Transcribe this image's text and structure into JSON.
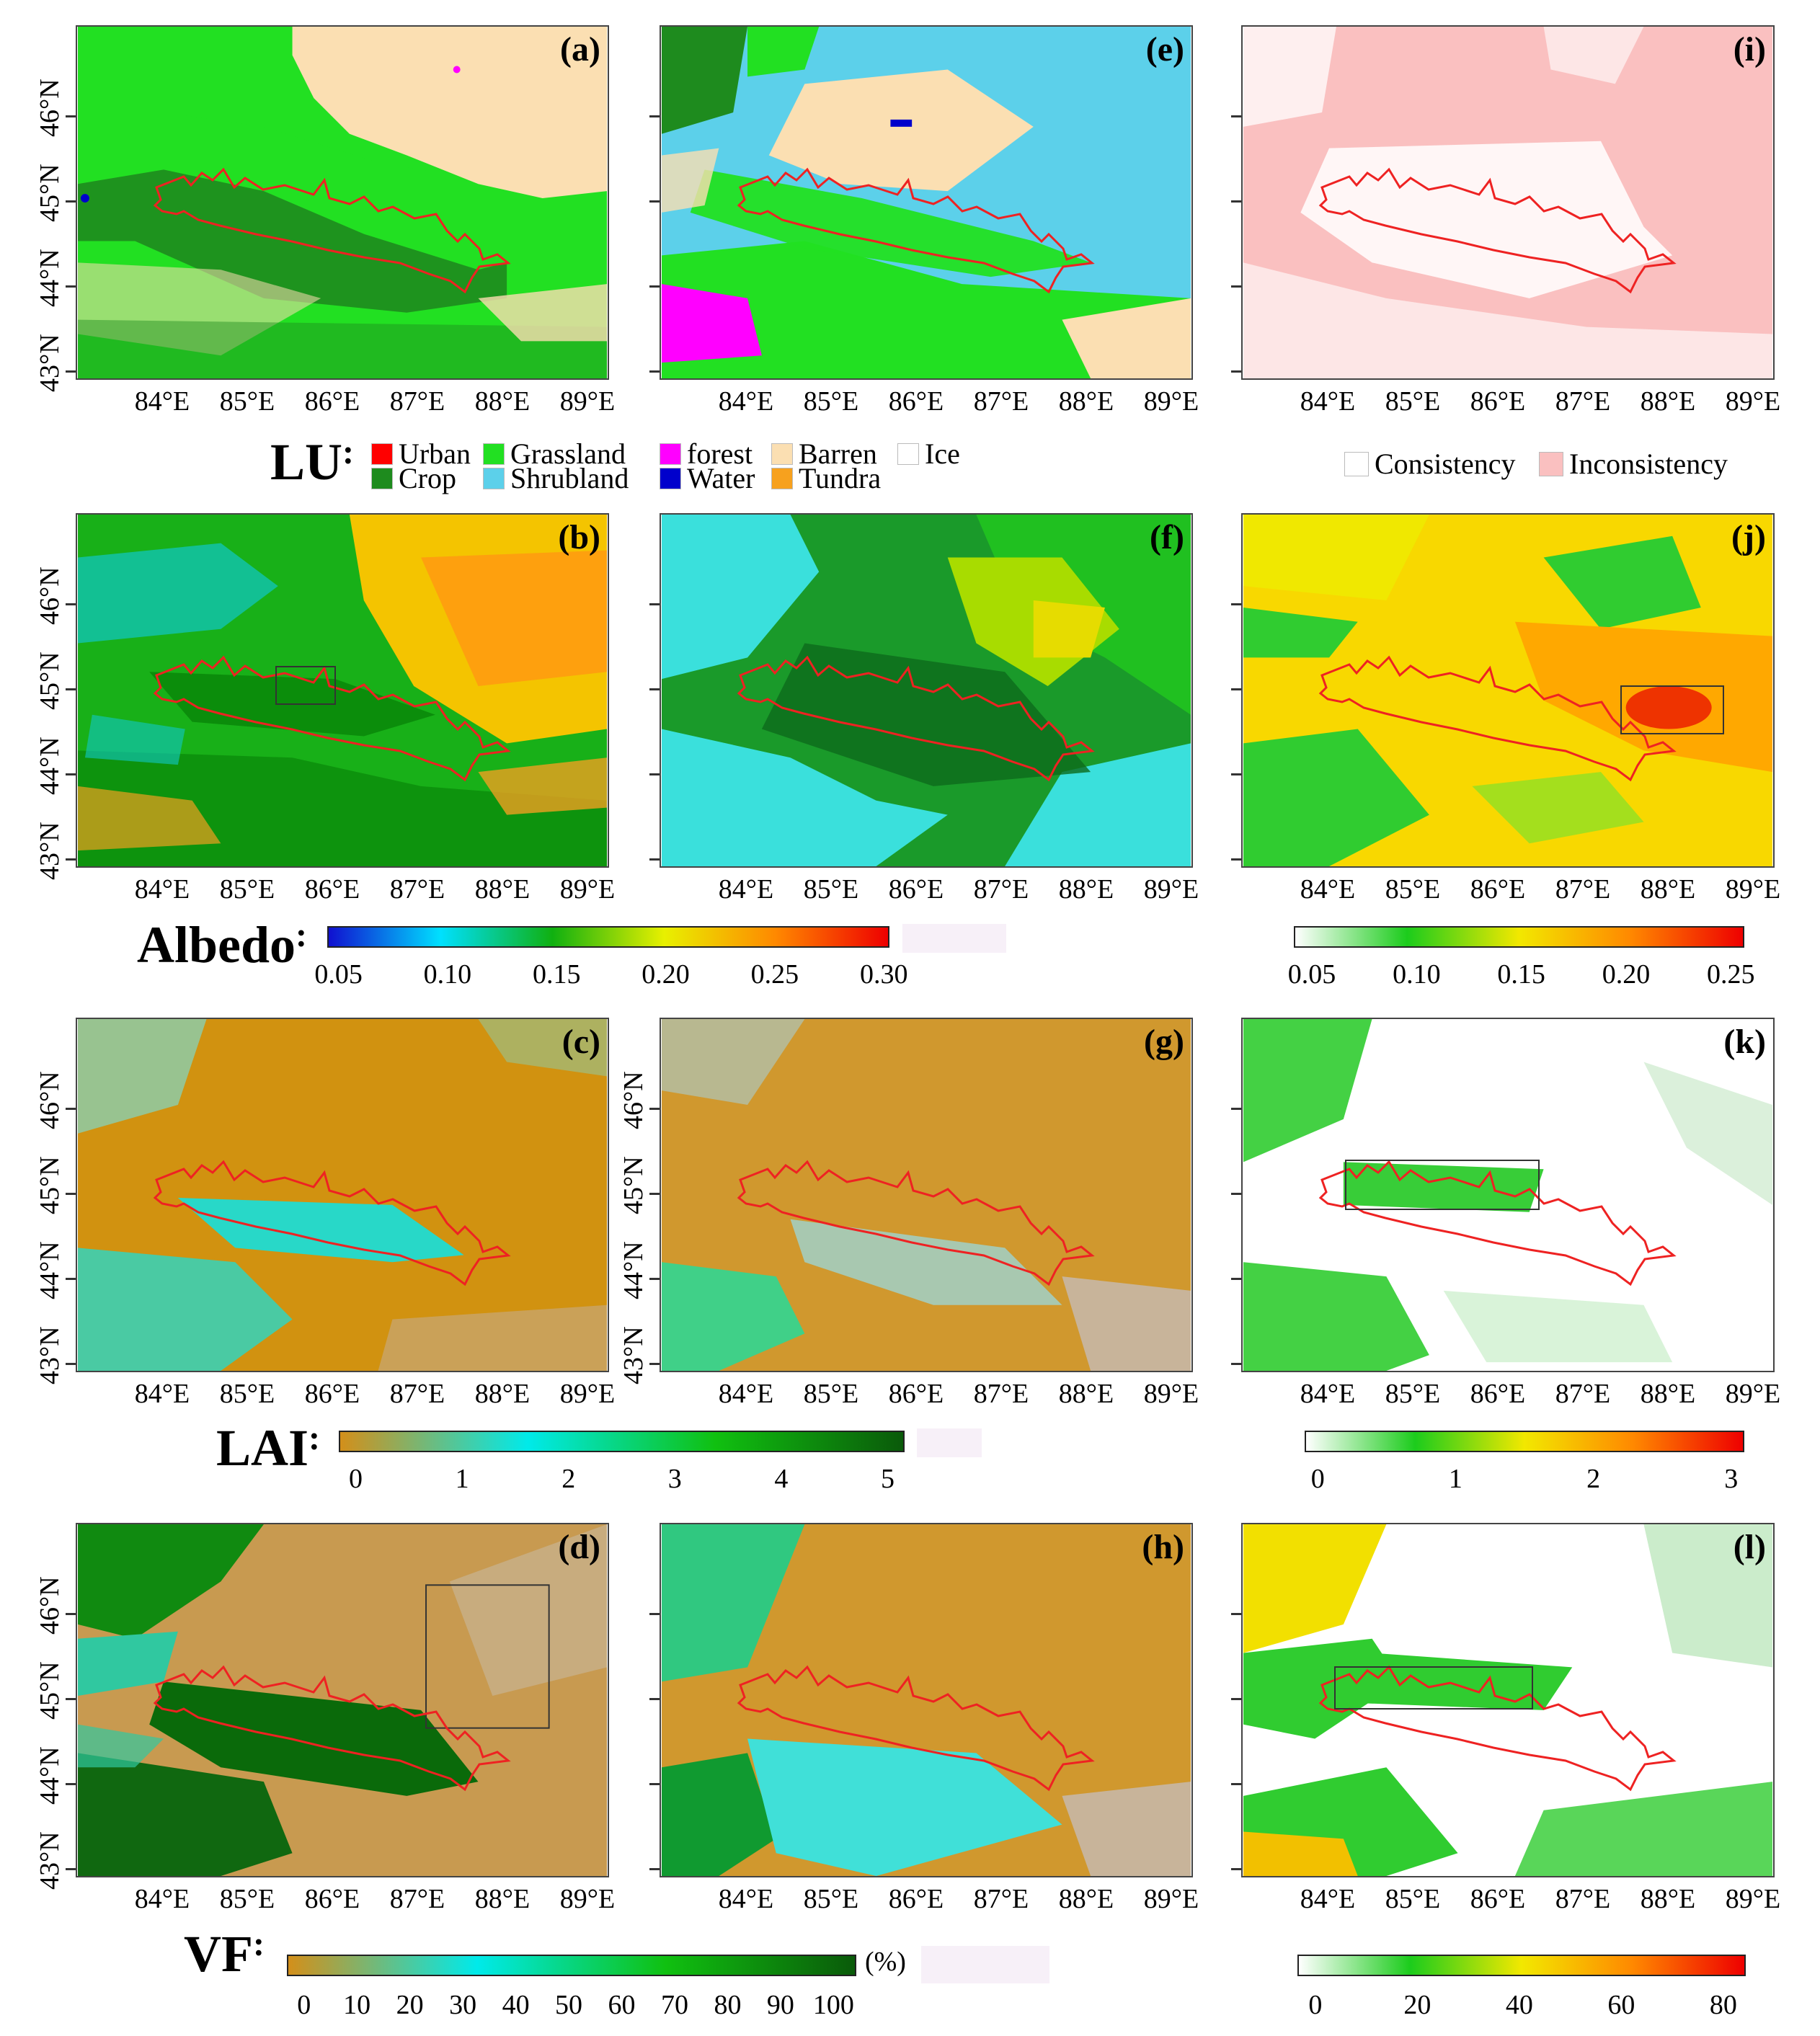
{
  "panels": {
    "a": "(a)",
    "b": "(b)",
    "c": "(c)",
    "d": "(d)",
    "e": "(e)",
    "f": "(f)",
    "g": "(g)",
    "h": "(h)",
    "i": "(i)",
    "j": "(j)",
    "k": "(k)",
    "l": "(l)"
  },
  "axes": {
    "lon_ticks_col12": [
      "84°E",
      "85°E",
      "86°E",
      "87°E",
      "88°E",
      "89°E"
    ],
    "lon_ticks_col3": [
      "84°E",
      "85°E",
      "86°E",
      "87°E",
      "88°E",
      "89°E"
    ],
    "lat_ticks": [
      "46°N",
      "45°N",
      "44°N",
      "43°N"
    ]
  },
  "legends": {
    "lu": {
      "title": "LU",
      "colon": ":",
      "items": [
        {
          "label": "Urban",
          "color": "#ff0000"
        },
        {
          "label": "Crop",
          "color": "#1e8b1e"
        },
        {
          "label": "Grassland",
          "color": "#22e022"
        },
        {
          "label": "Shrubland",
          "color": "#5cd0ea"
        },
        {
          "label": "forest",
          "color": "#ff00ff"
        },
        {
          "label": "Water",
          "color": "#0000cc"
        },
        {
          "label": "Barren",
          "color": "#fbdfb2"
        },
        {
          "label": "Tundra",
          "color": "#f7a11e"
        },
        {
          "label": "Ice",
          "color": "#ffffff"
        }
      ]
    },
    "consistency": {
      "items": [
        {
          "label": "Consistency",
          "color": "#ffffff"
        },
        {
          "label": "Inconsistency",
          "color": "#fac0c0"
        }
      ]
    },
    "albedo": {
      "title": "Albedo",
      "colon": ":",
      "ticks": [
        "0.05",
        "0.10",
        "0.15",
        "0.20",
        "0.25",
        "0.30"
      ],
      "diff_ticks": [
        "0.05",
        "0.10",
        "0.15",
        "0.20",
        "0.25"
      ]
    },
    "lai": {
      "title": "LAI",
      "colon": ":",
      "ticks": [
        "0",
        "1",
        "2",
        "3",
        "4",
        "5"
      ],
      "diff_ticks": [
        "0",
        "1",
        "2",
        "3"
      ]
    },
    "vf": {
      "title": "VF",
      "colon": ":",
      "unit": "(%)",
      "ticks": [
        "0",
        "10",
        "20",
        "30",
        "40",
        "50",
        "60",
        "70",
        "80",
        "90",
        "100"
      ],
      "diff_ticks": [
        "0",
        "20",
        "40",
        "60",
        "80"
      ]
    }
  },
  "colors": {
    "boundary": "#ee2222",
    "albedo_ramp": [
      "#1010d0",
      "#00e0ff",
      "#10b010",
      "#e8f000",
      "#ff8800",
      "#ee0000"
    ],
    "lai_ramp": [
      "#d38f1a",
      "#00eaea",
      "#10c010",
      "#0a5a0a"
    ],
    "diff_ramp": [
      "#ffffff",
      "#1ccc1c",
      "#f2e800",
      "#ff8800",
      "#ee0000"
    ]
  }
}
